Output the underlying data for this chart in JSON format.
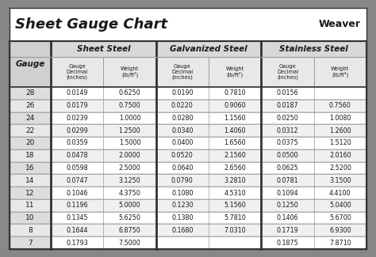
{
  "title": "Sheet Gauge Chart",
  "bg_outer": "#888888",
  "bg_white": "#ffffff",
  "bg_table": "#f5f5f5",
  "header_bg": "#d8d8d8",
  "row_light": "#f0f0f0",
  "row_white": "#ffffff",
  "gauge_col_bg": "#e0e0e0",
  "section_headers": [
    "Sheet Steel",
    "Galvanized Steel",
    "Stainless Steel"
  ],
  "gauges": [
    28,
    26,
    24,
    22,
    20,
    18,
    16,
    14,
    12,
    11,
    10,
    8,
    7
  ],
  "sheet_steel_decimal": [
    "0.0149",
    "0.0179",
    "0.0239",
    "0.0299",
    "0.0359",
    "0.0478",
    "0.0598",
    "0.0747",
    "0.1046",
    "0.1196",
    "0.1345",
    "0.1644",
    "0.1793"
  ],
  "sheet_steel_weight": [
    "0.6250",
    "0.7500",
    "1.0000",
    "1.2500",
    "1.5000",
    "2.0000",
    "2.5000",
    "3.1250",
    "4.3750",
    "5.0000",
    "5.6250",
    "6.8750",
    "7.5000"
  ],
  "galv_steel_decimal": [
    "0.0190",
    "0.0220",
    "0.0280",
    "0.0340",
    "0.0400",
    "0.0520",
    "0.0640",
    "0.0790",
    "0.1080",
    "0.1230",
    "0.1380",
    "0.1680",
    ""
  ],
  "galv_steel_weight": [
    "0.7810",
    "0.9060",
    "1.1560",
    "1.4060",
    "1.6560",
    "2.1560",
    "2.6560",
    "3.2810",
    "4.5310",
    "5.1560",
    "5.7810",
    "7.0310",
    ""
  ],
  "stainless_decimal": [
    "0.0156",
    "0.0187",
    "0.0250",
    "0.0312",
    "0.0375",
    "0.0500",
    "0.0625",
    "0.0781",
    "0.1094",
    "0.1250",
    "0.1406",
    "0.1719",
    "0.1875"
  ],
  "stainless_weight": [
    "",
    "0.7560",
    "1.0080",
    "1.2600",
    "1.5120",
    "2.0160",
    "2.5200",
    "3.1500",
    "4.4100",
    "5.0400",
    "5.6700",
    "6.9300",
    "7.8710"
  ],
  "border_color": "#333333",
  "text_color": "#1a1a1a",
  "grid_color": "#999999"
}
